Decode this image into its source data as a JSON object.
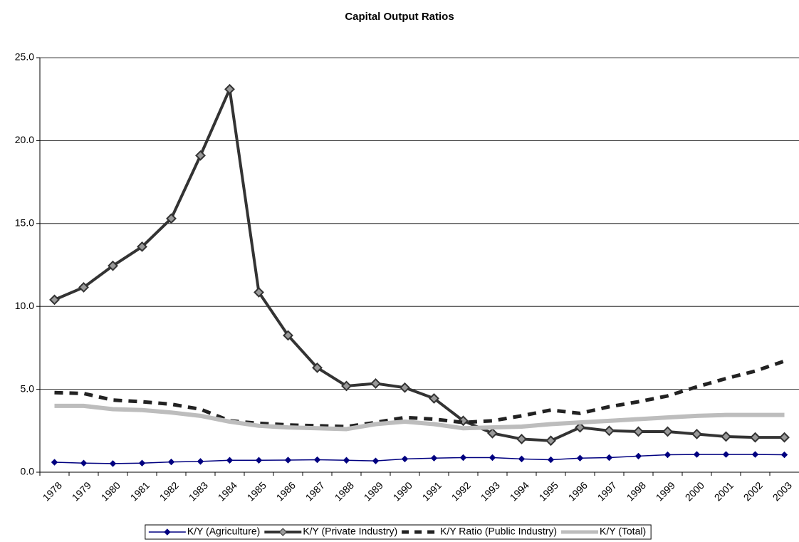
{
  "chart_data": {
    "type": "line",
    "title": "Capital Output Ratios",
    "categories": [
      "1978",
      "1979",
      "1980",
      "1981",
      "1982",
      "1983",
      "1984",
      "1985",
      "1986",
      "1987",
      "1988",
      "1989",
      "1990",
      "1991",
      "1992",
      "1993",
      "1994",
      "1995",
      "1996",
      "1997",
      "1998",
      "1999",
      "2000",
      "2001",
      "2002",
      "2003"
    ],
    "series": [
      {
        "name": "K/Y (Agriculture)",
        "color": "#000080",
        "marker": "diamond",
        "values": [
          0.6,
          0.55,
          0.52,
          0.55,
          0.62,
          0.65,
          0.72,
          0.72,
          0.73,
          0.75,
          0.72,
          0.68,
          0.8,
          0.85,
          0.88,
          0.88,
          0.8,
          0.75,
          0.85,
          0.88,
          0.97,
          1.05,
          1.07,
          1.07,
          1.07,
          1.05
        ]
      },
      {
        "name": "K/Y (Private Industry)",
        "color": "#333333",
        "marker": "diamond",
        "values": [
          10.4,
          11.15,
          12.45,
          13.6,
          15.3,
          19.1,
          23.1,
          10.85,
          8.25,
          6.3,
          5.2,
          5.35,
          5.1,
          4.45,
          3.1,
          2.35,
          2.0,
          1.9,
          2.7,
          2.5,
          2.45,
          2.45,
          2.3,
          2.15,
          2.1,
          2.1
        ]
      },
      {
        "name": "K/Y Ratio (Public Industry)",
        "color": "#222222",
        "dashed": true,
        "values": [
          4.8,
          4.75,
          4.35,
          4.25,
          4.1,
          3.8,
          3.1,
          2.95,
          2.85,
          2.8,
          2.75,
          3.0,
          3.3,
          3.2,
          3.0,
          3.1,
          3.4,
          3.75,
          3.55,
          3.95,
          4.25,
          4.6,
          5.15,
          5.65,
          6.1,
          6.7
        ]
      },
      {
        "name": "K/Y (Total)",
        "color": "#bdbdbd",
        "values": [
          4.0,
          4.0,
          3.8,
          3.75,
          3.6,
          3.4,
          3.05,
          2.8,
          2.7,
          2.65,
          2.6,
          2.9,
          3.05,
          2.9,
          2.65,
          2.7,
          2.75,
          2.9,
          3.0,
          3.1,
          3.2,
          3.3,
          3.4,
          3.45,
          3.45,
          3.45
        ]
      }
    ],
    "ylim": [
      0,
      25
    ],
    "yticks": [
      {
        "value": 0,
        "label": "0.0"
      },
      {
        "value": 5,
        "label": "5.0"
      },
      {
        "value": 10,
        "label": "10.0"
      },
      {
        "value": 15,
        "label": "15.0"
      },
      {
        "value": 20,
        "label": "20.0"
      },
      {
        "value": 25,
        "label": "25.0"
      }
    ],
    "grid": true,
    "legend": "bottom"
  }
}
